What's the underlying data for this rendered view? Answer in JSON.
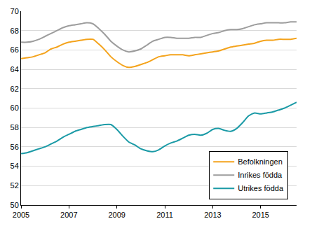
{
  "chart_data": {
    "type": "line",
    "x": [
      2005,
      2005.25,
      2005.5,
      2005.75,
      2006,
      2006.25,
      2006.5,
      2006.75,
      2007,
      2007.25,
      2007.5,
      2007.75,
      2008,
      2008.25,
      2008.5,
      2008.75,
      2009,
      2009.25,
      2009.5,
      2009.75,
      2010,
      2010.25,
      2010.5,
      2010.75,
      2011,
      2011.25,
      2011.5,
      2011.75,
      2012,
      2012.25,
      2012.5,
      2012.75,
      2013,
      2013.25,
      2013.5,
      2013.75,
      2014,
      2014.25,
      2014.5,
      2014.75,
      2015,
      2015.25,
      2015.5,
      2015.75,
      2016,
      2016.25,
      2016.5
    ],
    "series": [
      {
        "name": "Befolkningen",
        "color": "#f4a31c",
        "values": [
          65.1,
          65.2,
          65.3,
          65.5,
          65.7,
          66.1,
          66.3,
          66.6,
          66.8,
          66.9,
          67.0,
          67.1,
          67.1,
          66.6,
          66.0,
          65.3,
          64.8,
          64.4,
          64.2,
          64.3,
          64.5,
          64.7,
          65.0,
          65.3,
          65.4,
          65.5,
          65.5,
          65.5,
          65.4,
          65.5,
          65.6,
          65.7,
          65.8,
          65.9,
          66.1,
          66.3,
          66.4,
          66.5,
          66.6,
          66.7,
          66.9,
          67.0,
          67.0,
          67.1,
          67.1,
          67.1,
          67.2
        ]
      },
      {
        "name": "Inrikes födda",
        "color": "#9d9d9d",
        "values": [
          66.8,
          66.8,
          66.9,
          67.1,
          67.4,
          67.7,
          68.0,
          68.3,
          68.5,
          68.6,
          68.7,
          68.8,
          68.7,
          68.2,
          67.6,
          66.9,
          66.4,
          66.0,
          65.8,
          65.9,
          66.1,
          66.5,
          66.9,
          67.1,
          67.3,
          67.3,
          67.2,
          67.2,
          67.2,
          67.3,
          67.3,
          67.5,
          67.7,
          67.8,
          68.0,
          68.1,
          68.1,
          68.2,
          68.4,
          68.6,
          68.7,
          68.8,
          68.8,
          68.8,
          68.8,
          68.9,
          68.9
        ]
      },
      {
        "name": "Utrikes födda",
        "color": "#1a9aa6",
        "values": [
          55.3,
          55.4,
          55.6,
          55.8,
          56.0,
          56.3,
          56.6,
          57.0,
          57.3,
          57.6,
          57.8,
          58.0,
          58.1,
          58.2,
          58.3,
          58.3,
          57.8,
          57.1,
          56.5,
          56.2,
          55.8,
          55.6,
          55.5,
          55.7,
          56.1,
          56.4,
          56.6,
          56.9,
          57.2,
          57.3,
          57.2,
          57.4,
          57.8,
          57.9,
          57.7,
          57.6,
          57.9,
          58.5,
          59.2,
          59.5,
          59.4,
          59.5,
          59.6,
          59.8,
          60.0,
          60.3,
          60.6
        ]
      }
    ],
    "xlim": [
      2005,
      2016.5
    ],
    "xticks": [
      2005,
      2007,
      2009,
      2011,
      2013,
      2015
    ],
    "ylim": [
      50,
      70
    ],
    "yticks": [
      50,
      52,
      54,
      56,
      58,
      60,
      62,
      64,
      66,
      68,
      70
    ],
    "grid": true,
    "legend": "lower right"
  }
}
